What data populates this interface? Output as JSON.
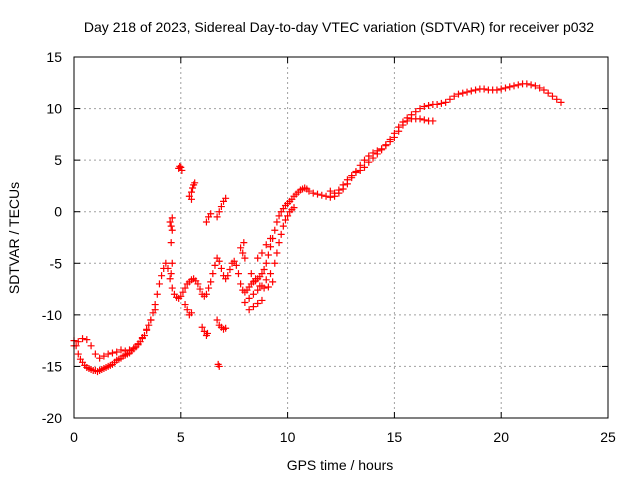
{
  "chart_data": {
    "type": "scatter",
    "title": "Day 218 of 2023, Sidereal Day-to-day VTEC variation (SDTVAR) for receiver p032",
    "xlabel": "GPS time / hours",
    "ylabel": "SDTVAR / TECUs",
    "xlim": [
      0,
      25
    ],
    "ylim": [
      -20,
      15
    ],
    "xticks": [
      0,
      5,
      10,
      15,
      20,
      25
    ],
    "yticks": [
      -20,
      -15,
      -10,
      -5,
      0,
      5,
      10,
      15
    ],
    "xtick_labels": [
      "0",
      "5",
      "10",
      "15",
      "20",
      "25"
    ],
    "ytick_labels": [
      "-20",
      "-15",
      "-10",
      "-5",
      "0",
      "5",
      "10",
      "15"
    ],
    "grid": true,
    "marker": "+",
    "marker_color": "#ff0000",
    "series": [
      {
        "name": "main-track",
        "points": [
          [
            0.0,
            -12.5
          ],
          [
            0.1,
            -13.0
          ],
          [
            0.2,
            -13.8
          ],
          [
            0.3,
            -14.3
          ],
          [
            0.4,
            -14.6
          ],
          [
            0.5,
            -14.9
          ],
          [
            0.6,
            -15.1
          ],
          [
            0.7,
            -15.2
          ],
          [
            0.8,
            -15.3
          ],
          [
            0.9,
            -15.4
          ],
          [
            1.0,
            -15.4
          ],
          [
            1.1,
            -15.5
          ],
          [
            1.2,
            -15.4
          ],
          [
            1.3,
            -15.3
          ],
          [
            1.4,
            -15.2
          ],
          [
            1.5,
            -15.1
          ],
          [
            1.6,
            -15.0
          ],
          [
            1.7,
            -14.9
          ],
          [
            1.8,
            -14.8
          ],
          [
            1.9,
            -14.6
          ],
          [
            2.0,
            -14.4
          ],
          [
            2.1,
            -14.3
          ],
          [
            2.2,
            -14.2
          ],
          [
            2.3,
            -14.0
          ],
          [
            2.4,
            -13.9
          ],
          [
            2.5,
            -13.8
          ],
          [
            2.6,
            -13.7
          ],
          [
            2.7,
            -13.5
          ],
          [
            2.8,
            -13.3
          ],
          [
            2.9,
            -13.1
          ],
          [
            3.0,
            -12.9
          ],
          [
            3.1,
            -12.6
          ],
          [
            3.2,
            -12.3
          ],
          [
            3.3,
            -12.0
          ],
          [
            3.4,
            -11.5
          ],
          [
            3.5,
            -11.0
          ],
          [
            3.6,
            -10.5
          ],
          [
            3.7,
            -9.8
          ],
          [
            3.8,
            -9.0
          ],
          [
            3.9,
            -8.0
          ],
          [
            4.0,
            -7.0
          ],
          [
            4.1,
            -6.2
          ],
          [
            4.2,
            -5.5
          ],
          [
            4.3,
            -5.0
          ],
          [
            4.4,
            -5.5
          ],
          [
            4.5,
            -6.5
          ],
          [
            4.6,
            -7.4
          ],
          [
            4.7,
            -8.0
          ],
          [
            4.8,
            -8.3
          ],
          [
            4.9,
            -8.4
          ],
          [
            5.0,
            -8.2
          ],
          [
            5.1,
            -7.8
          ],
          [
            5.2,
            -7.4
          ],
          [
            5.3,
            -7.0
          ],
          [
            5.4,
            -6.8
          ],
          [
            5.5,
            -6.6
          ],
          [
            5.6,
            -6.5
          ],
          [
            5.7,
            -6.7
          ],
          [
            5.8,
            -7.0
          ],
          [
            5.9,
            -7.5
          ],
          [
            6.0,
            -8.0
          ],
          [
            6.1,
            -8.2
          ],
          [
            6.2,
            -8.0
          ],
          [
            6.3,
            -7.4
          ],
          [
            6.4,
            -6.8
          ],
          [
            6.5,
            -6.0
          ],
          [
            6.6,
            -5.2
          ],
          [
            6.7,
            -4.5
          ],
          [
            6.8,
            -4.8
          ],
          [
            6.9,
            -5.5
          ],
          [
            7.0,
            -6.2
          ],
          [
            7.1,
            -6.5
          ],
          [
            7.2,
            -6.2
          ],
          [
            7.3,
            -5.6
          ],
          [
            7.4,
            -5.0
          ],
          [
            7.5,
            -4.8
          ],
          [
            7.6,
            -5.2
          ],
          [
            7.7,
            -6.0
          ],
          [
            7.8,
            -7.0
          ],
          [
            7.9,
            -7.6
          ],
          [
            8.0,
            -7.8
          ],
          [
            8.1,
            -7.6
          ],
          [
            8.2,
            -7.3
          ],
          [
            8.3,
            -7.0
          ],
          [
            8.4,
            -6.8
          ],
          [
            8.5,
            -6.7
          ],
          [
            8.6,
            -6.5
          ],
          [
            8.7,
            -6.3
          ],
          [
            8.8,
            -6.0
          ],
          [
            8.9,
            -5.6
          ],
          [
            9.0,
            -5.0
          ],
          [
            9.1,
            -4.2
          ],
          [
            9.2,
            -3.4
          ],
          [
            9.3,
            -2.6
          ],
          [
            9.4,
            -1.8
          ],
          [
            9.5,
            -1.0
          ],
          [
            9.6,
            -0.4
          ],
          [
            9.7,
            0.0
          ],
          [
            9.8,
            0.3
          ],
          [
            9.9,
            0.6
          ],
          [
            10.0,
            0.8
          ],
          [
            10.1,
            1.0
          ],
          [
            10.2,
            1.2
          ],
          [
            10.3,
            1.5
          ],
          [
            10.4,
            1.7
          ],
          [
            10.5,
            1.9
          ],
          [
            10.6,
            2.1
          ],
          [
            10.7,
            2.2
          ],
          [
            10.8,
            2.3
          ],
          [
            10.9,
            2.2
          ],
          [
            11.0,
            2.0
          ],
          [
            11.2,
            1.8
          ],
          [
            11.4,
            1.7
          ],
          [
            11.6,
            1.6
          ],
          [
            11.8,
            1.5
          ],
          [
            12.0,
            1.4
          ],
          [
            12.2,
            1.5
          ],
          [
            12.4,
            1.8
          ],
          [
            12.6,
            2.2
          ],
          [
            12.8,
            2.7
          ],
          [
            13.0,
            3.3
          ],
          [
            13.2,
            3.9
          ],
          [
            13.4,
            4.5
          ],
          [
            13.6,
            5.0
          ],
          [
            13.8,
            5.4
          ],
          [
            14.0,
            5.7
          ],
          [
            14.2,
            5.9
          ],
          [
            14.4,
            6.1
          ],
          [
            14.6,
            6.5
          ],
          [
            14.8,
            7.0
          ],
          [
            15.0,
            7.6
          ],
          [
            15.2,
            8.2
          ],
          [
            15.4,
            8.7
          ],
          [
            15.6,
            9.1
          ],
          [
            15.8,
            9.4
          ],
          [
            16.0,
            9.7
          ],
          [
            16.2,
            10.0
          ],
          [
            16.4,
            10.2
          ],
          [
            16.6,
            10.3
          ],
          [
            16.8,
            10.4
          ],
          [
            17.0,
            10.4
          ],
          [
            17.2,
            10.5
          ],
          [
            17.4,
            10.6
          ],
          [
            17.6,
            10.9
          ],
          [
            17.8,
            11.2
          ],
          [
            18.0,
            11.4
          ],
          [
            18.2,
            11.5
          ],
          [
            18.4,
            11.6
          ],
          [
            18.6,
            11.7
          ],
          [
            18.8,
            11.8
          ],
          [
            19.0,
            11.9
          ],
          [
            19.2,
            11.9
          ],
          [
            19.4,
            11.8
          ],
          [
            19.6,
            11.8
          ],
          [
            19.8,
            11.8
          ],
          [
            20.0,
            11.9
          ],
          [
            20.2,
            12.0
          ],
          [
            20.4,
            12.1
          ],
          [
            20.6,
            12.2
          ],
          [
            20.8,
            12.3
          ],
          [
            21.0,
            12.4
          ],
          [
            21.2,
            12.4
          ],
          [
            21.4,
            12.3
          ],
          [
            21.6,
            12.2
          ],
          [
            21.8,
            12.0
          ],
          [
            22.0,
            11.8
          ],
          [
            22.2,
            11.5
          ],
          [
            22.4,
            11.2
          ],
          [
            22.6,
            10.9
          ],
          [
            22.8,
            10.6
          ]
        ]
      },
      {
        "name": "secondary-track",
        "points": [
          [
            0.0,
            -13.0
          ],
          [
            0.2,
            -12.6
          ],
          [
            0.4,
            -12.3
          ],
          [
            0.6,
            -12.4
          ],
          [
            0.8,
            -13.0
          ],
          [
            1.0,
            -13.8
          ],
          [
            1.2,
            -14.2
          ],
          [
            1.4,
            -14.0
          ],
          [
            1.6,
            -13.8
          ],
          [
            1.8,
            -13.7
          ],
          [
            2.0,
            -13.6
          ],
          [
            2.2,
            -13.4
          ],
          [
            2.4,
            -13.5
          ],
          [
            2.6,
            -13.4
          ],
          [
            2.8,
            -13.2
          ],
          [
            3.0,
            -12.8
          ],
          [
            3.2,
            -12.2
          ],
          [
            3.4,
            -11.4
          ],
          [
            3.6,
            -10.5
          ],
          [
            3.8,
            -9.5
          ],
          [
            8.0,
            -8.8
          ],
          [
            8.2,
            -8.4
          ],
          [
            8.4,
            -8.0
          ],
          [
            8.6,
            -7.6
          ],
          [
            8.8,
            -7.2
          ],
          [
            9.0,
            -6.6
          ],
          [
            9.2,
            -6.0
          ],
          [
            9.4,
            -5.0
          ],
          [
            9.5,
            -4.0
          ],
          [
            9.6,
            -3.0
          ],
          [
            9.7,
            -2.2
          ],
          [
            9.8,
            -1.4
          ],
          [
            9.9,
            -0.8
          ],
          [
            10.0,
            -0.4
          ],
          [
            10.1,
            0.0
          ],
          [
            10.2,
            0.2
          ],
          [
            10.3,
            0.4
          ],
          [
            12.0,
            2.0
          ],
          [
            12.2,
            1.8
          ],
          [
            12.4,
            2.1
          ],
          [
            12.6,
            2.6
          ],
          [
            12.8,
            3.1
          ],
          [
            13.0,
            3.5
          ],
          [
            13.2,
            3.8
          ],
          [
            13.4,
            4.0
          ],
          [
            13.6,
            4.3
          ],
          [
            13.8,
            4.8
          ],
          [
            14.0,
            5.2
          ],
          [
            14.2,
            5.6
          ],
          [
            14.4,
            6.0
          ],
          [
            14.6,
            6.4
          ],
          [
            14.8,
            6.8
          ],
          [
            15.0,
            7.2
          ],
          [
            15.2,
            7.8
          ],
          [
            15.4,
            8.4
          ],
          [
            15.6,
            8.8
          ],
          [
            15.8,
            9.0
          ],
          [
            16.0,
            9.0
          ],
          [
            16.2,
            9.0
          ],
          [
            16.4,
            8.9
          ],
          [
            16.6,
            8.8
          ],
          [
            16.8,
            8.8
          ]
        ]
      },
      {
        "name": "scattered-points",
        "points": [
          [
            4.5,
            -1.0
          ],
          [
            4.55,
            -1.4
          ],
          [
            4.6,
            -0.6
          ],
          [
            4.6,
            -1.8
          ],
          [
            4.55,
            -3.0
          ],
          [
            4.6,
            -5.0
          ],
          [
            4.55,
            -6.0
          ],
          [
            4.9,
            4.2
          ],
          [
            4.95,
            4.4
          ],
          [
            5.0,
            4.3
          ],
          [
            5.05,
            4.0
          ],
          [
            5.4,
            1.5
          ],
          [
            5.5,
            1.9
          ],
          [
            5.55,
            2.3
          ],
          [
            5.6,
            2.6
          ],
          [
            5.65,
            2.8
          ],
          [
            5.5,
            1.2
          ],
          [
            6.2,
            -1.0
          ],
          [
            6.3,
            -0.5
          ],
          [
            6.4,
            -0.2
          ],
          [
            6.7,
            -0.5
          ],
          [
            6.8,
            0.0
          ],
          [
            6.9,
            0.5
          ],
          [
            7.0,
            1.0
          ],
          [
            7.1,
            1.3
          ],
          [
            6.8,
            -15.0
          ],
          [
            6.75,
            -14.8
          ],
          [
            6.0,
            -11.2
          ],
          [
            6.1,
            -11.6
          ],
          [
            6.2,
            -12.0
          ],
          [
            6.25,
            -11.8
          ],
          [
            6.7,
            -10.5
          ],
          [
            6.8,
            -11.0
          ],
          [
            6.9,
            -11.2
          ],
          [
            7.0,
            -11.4
          ],
          [
            7.1,
            -11.3
          ],
          [
            5.2,
            -9.0
          ],
          [
            5.3,
            -9.5
          ],
          [
            5.4,
            -10.0
          ],
          [
            5.5,
            -9.8
          ],
          [
            7.8,
            -3.5
          ],
          [
            7.9,
            -4.0
          ],
          [
            8.0,
            -4.5
          ],
          [
            7.95,
            -3.0
          ],
          [
            8.3,
            -6.0
          ],
          [
            8.5,
            -6.5
          ],
          [
            8.7,
            -7.2
          ],
          [
            8.9,
            -7.4
          ],
          [
            9.1,
            -7.3
          ],
          [
            9.3,
            -6.8
          ],
          [
            8.2,
            -9.5
          ],
          [
            8.4,
            -9.2
          ],
          [
            8.6,
            -8.9
          ],
          [
            8.8,
            -8.6
          ],
          [
            8.6,
            -4.5
          ],
          [
            8.8,
            -4.0
          ],
          [
            9.0,
            -3.2
          ],
          [
            9.2,
            -2.6
          ]
        ]
      }
    ]
  }
}
